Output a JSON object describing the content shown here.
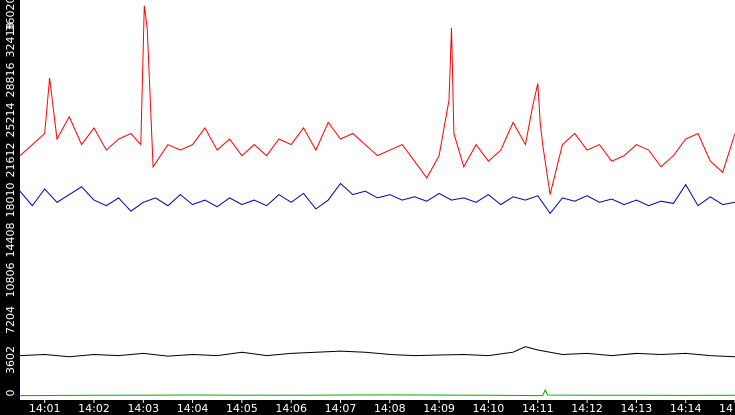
{
  "chart_data": {
    "type": "line",
    "title": "",
    "xlabel": "",
    "ylabel": "",
    "ylim": [
      0,
      36020
    ],
    "y_ticks": [
      0,
      3602,
      7204,
      10806,
      14408,
      18010,
      21612,
      25214,
      28816,
      32418,
      36020
    ],
    "y_tick_labels": [
      "0",
      "3602",
      "7204",
      "10806",
      "14408",
      "18010",
      "21612",
      "25214",
      "28816",
      "32418",
      "36020"
    ],
    "x_ticks": [
      "14:01",
      "14:02",
      "14:03",
      "14:04",
      "14:05",
      "14:06",
      "14:07",
      "14:08",
      "14:09",
      "14:10",
      "14:11",
      "14:12",
      "14:13",
      "14:14",
      "14"
    ],
    "x_range_minutes": [
      0.5,
      15.0
    ],
    "grid": false,
    "legend": "none",
    "axis_bar_color": "#000000",
    "axis_text_color": "#ffffff",
    "series": [
      {
        "color": "#ff0000",
        "x_minutes": [
          0.5,
          0.75,
          1.0,
          1.1,
          1.25,
          1.5,
          1.75,
          2.0,
          2.25,
          2.5,
          2.75,
          2.95,
          3.02,
          3.08,
          3.2,
          3.5,
          3.75,
          4.0,
          4.25,
          4.5,
          4.75,
          5.0,
          5.25,
          5.5,
          5.75,
          6.0,
          6.25,
          6.5,
          6.75,
          7.0,
          7.25,
          7.5,
          7.75,
          8.0,
          8.25,
          8.5,
          8.75,
          9.0,
          9.2,
          9.25,
          9.3,
          9.5,
          9.75,
          10.0,
          10.25,
          10.5,
          10.75,
          10.9,
          11.0,
          11.05,
          11.1,
          11.25,
          11.5,
          11.75,
          12.0,
          12.25,
          12.5,
          12.75,
          13.0,
          13.25,
          13.5,
          13.75,
          14.0,
          14.25,
          14.5,
          14.75,
          15.0
        ],
        "y": [
          22000,
          23000,
          24000,
          29000,
          23500,
          25500,
          23000,
          24500,
          22500,
          23500,
          24000,
          23000,
          35500,
          33500,
          21000,
          23000,
          22500,
          23000,
          24500,
          22500,
          23500,
          22000,
          23000,
          22000,
          23500,
          23000,
          24500,
          22500,
          25000,
          23500,
          24000,
          23000,
          22000,
          22500,
          23000,
          21500,
          20000,
          22000,
          27000,
          33500,
          24000,
          21000,
          23000,
          21500,
          22500,
          25000,
          23000,
          26500,
          28500,
          25000,
          23000,
          18500,
          23000,
          24000,
          22500,
          23000,
          21500,
          22000,
          23000,
          22500,
          21000,
          22000,
          23500,
          24000,
          21500,
          20500,
          24000
        ]
      },
      {
        "color": "#0000b8",
        "x_minutes": [
          0.5,
          0.75,
          1.0,
          1.25,
          1.5,
          1.75,
          2.0,
          2.25,
          2.5,
          2.75,
          3.0,
          3.25,
          3.5,
          3.75,
          4.0,
          4.25,
          4.5,
          4.75,
          5.0,
          5.25,
          5.5,
          5.75,
          6.0,
          6.25,
          6.5,
          6.75,
          7.0,
          7.25,
          7.5,
          7.75,
          8.0,
          8.25,
          8.5,
          8.75,
          9.0,
          9.25,
          9.5,
          9.75,
          10.0,
          10.25,
          10.5,
          10.75,
          11.0,
          11.25,
          11.5,
          11.75,
          12.0,
          12.25,
          12.5,
          12.75,
          13.0,
          13.25,
          13.5,
          13.75,
          14.0,
          14.25,
          14.5,
          14.75,
          15.0
        ],
        "y": [
          18800,
          17500,
          19000,
          17800,
          18500,
          19200,
          18000,
          17500,
          18200,
          17000,
          17800,
          18200,
          17500,
          18500,
          17600,
          18000,
          17400,
          18200,
          17600,
          18000,
          17500,
          18500,
          17800,
          18600,
          17200,
          18000,
          19500,
          18500,
          18800,
          18200,
          18500,
          18000,
          18300,
          17900,
          18600,
          18000,
          18200,
          17800,
          18500,
          17600,
          18300,
          18000,
          18400,
          16800,
          18200,
          17900,
          18400,
          17800,
          18100,
          17600,
          18000,
          17500,
          17900,
          17700,
          19400,
          17500,
          18300,
          17600,
          17800
        ]
      },
      {
        "color": "#000000",
        "x_minutes": [
          0.5,
          1.0,
          1.5,
          2.0,
          2.5,
          3.0,
          3.5,
          4.0,
          4.5,
          5.0,
          5.5,
          6.0,
          6.5,
          7.0,
          7.5,
          8.0,
          8.5,
          9.0,
          9.5,
          10.0,
          10.5,
          10.75,
          11.0,
          11.5,
          12.0,
          12.5,
          13.0,
          13.5,
          14.0,
          14.5,
          15.0
        ],
        "y": [
          4000,
          4100,
          3900,
          4100,
          4000,
          4200,
          3950,
          4100,
          4000,
          4300,
          4000,
          4200,
          4300,
          4400,
          4300,
          4100,
          4000,
          4050,
          4100,
          4000,
          4300,
          4800,
          4500,
          4100,
          4200,
          4000,
          4200,
          4100,
          4200,
          4000,
          3900
        ]
      },
      {
        "color": "#00b000",
        "x_minutes": [
          0.5,
          2.0,
          4.0,
          6.0,
          8.0,
          10.0,
          11.1,
          11.15,
          11.2,
          12.0,
          13.0,
          14.0,
          15.0
        ],
        "y": [
          400,
          420,
          450,
          420,
          460,
          430,
          400,
          900,
          450,
          420,
          430,
          410,
          420
        ]
      }
    ]
  }
}
